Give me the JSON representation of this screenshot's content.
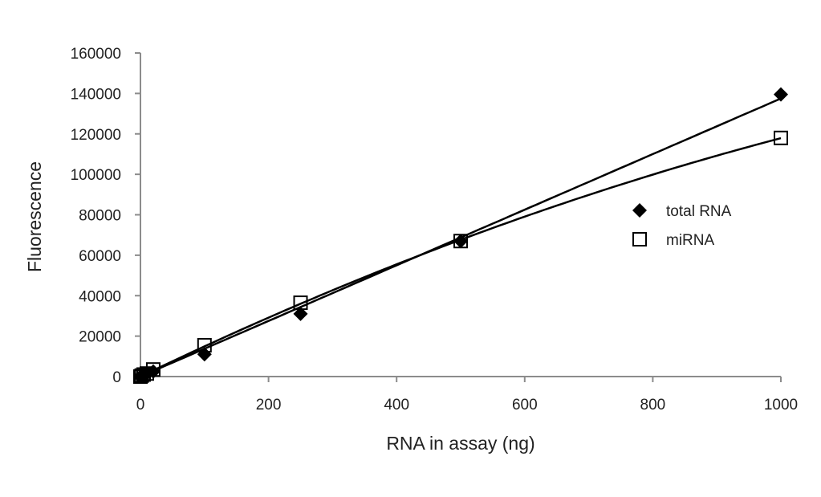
{
  "chart_data": {
    "type": "scatter",
    "title": "",
    "xlabel": "RNA in assay (ng)",
    "ylabel": "Fluorescence",
    "xlim": [
      0,
      1000
    ],
    "ylim": [
      0,
      160000
    ],
    "xticks": [
      "0",
      "200",
      "400",
      "600",
      "800",
      "1000"
    ],
    "yticks": [
      "0",
      "20000",
      "40000",
      "60000",
      "80000",
      "100000",
      "120000",
      "140000",
      "160000"
    ],
    "grid": false,
    "legend_position": "right",
    "series": [
      {
        "name": "total RNA",
        "marker": "diamond-filled",
        "trendline": "linear",
        "color": "#000000",
        "x": [
          0,
          1,
          5,
          10,
          20,
          100,
          250,
          500,
          1000
        ],
        "y": [
          0,
          300,
          1000,
          1500,
          2500,
          11000,
          31000,
          67000,
          139500
        ]
      },
      {
        "name": "miRNA",
        "marker": "square-open",
        "trendline": "polynomial",
        "color": "#000000",
        "x": [
          0,
          2,
          5,
          10,
          20,
          100,
          250,
          500,
          1000
        ],
        "y": [
          0,
          500,
          1000,
          1500,
          3500,
          15500,
          36500,
          67000,
          118000
        ]
      }
    ]
  }
}
